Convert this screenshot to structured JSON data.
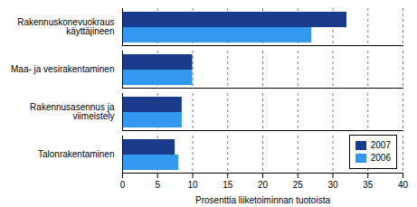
{
  "chart_data": {
    "type": "bar",
    "orientation": "horizontal",
    "categories": [
      "Rakennuskonevuokraus\nkäyttäjineen",
      "Maa- ja vesirakentaminen",
      "Rakennusasennus ja\nviimeistely",
      "Talonrakentaminen"
    ],
    "series": [
      {
        "name": "2007",
        "color": "#1a3a8c",
        "values": [
          32.0,
          10.0,
          8.5,
          7.5
        ]
      },
      {
        "name": "2006",
        "color": "#3399ee",
        "values": [
          27.0,
          10.0,
          8.5,
          8.0
        ]
      }
    ],
    "xlabel": "Prosenttia liiketoiminnan tuotoista",
    "xlim": [
      0,
      40
    ],
    "xticks": [
      0,
      5,
      10,
      15,
      20,
      25,
      30,
      35,
      40
    ],
    "grid": true,
    "legend": "lower right"
  }
}
